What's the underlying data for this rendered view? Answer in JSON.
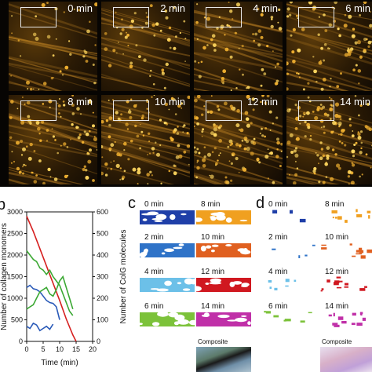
{
  "panel_a": {
    "frames": [
      {
        "label": "0 min"
      },
      {
        "label": "2 min"
      },
      {
        "label": "4 min"
      },
      {
        "label": "6 min"
      },
      {
        "label": "8 min"
      },
      {
        "label": "10 min"
      },
      {
        "label": "12 min"
      },
      {
        "label": "14 min"
      }
    ]
  },
  "panel_b": {
    "letter": "b",
    "chart_data": {
      "type": "line",
      "xlabel": "Time (min)",
      "ylabel_left": "Number of collagen monomers",
      "ylabel_right": "Number of ColG molecules",
      "xlim": [
        0,
        20
      ],
      "ylim_left": [
        0,
        3000
      ],
      "ylim_right": [
        0,
        600
      ],
      "x_ticks": [
        0,
        5,
        10,
        15,
        20
      ],
      "y_ticks_left": [
        0,
        500,
        1000,
        1500,
        2000,
        2500,
        3000
      ],
      "y_ticks_right": [
        0,
        100,
        200,
        300,
        400,
        500,
        600
      ],
      "series": [
        {
          "color": "#d62020",
          "axis": "left",
          "x": [
            0,
            2,
            4,
            6,
            8,
            10,
            12,
            14,
            15
          ],
          "y": [
            2900,
            2550,
            2150,
            1750,
            1350,
            950,
            520,
            150,
            0
          ]
        },
        {
          "color": "#2a5ab8",
          "axis": "left",
          "x": [
            0,
            1,
            2,
            3,
            4,
            5,
            6,
            7,
            8,
            9,
            10
          ],
          "y": [
            1250,
            1300,
            1220,
            1200,
            1150,
            1050,
            950,
            900,
            880,
            800,
            500
          ]
        },
        {
          "color": "#2a5ab8",
          "axis": "left",
          "x": [
            0,
            1,
            2,
            3,
            4,
            5,
            6,
            7,
            8
          ],
          "y": [
            350,
            300,
            420,
            380,
            250,
            300,
            350,
            280,
            400
          ]
        },
        {
          "color": "#3aa832",
          "axis": "right",
          "x": [
            0,
            1,
            2,
            3,
            4,
            5,
            6,
            7,
            8,
            9,
            10,
            11,
            12,
            13,
            14
          ],
          "y": [
            420,
            400,
            380,
            370,
            340,
            330,
            310,
            330,
            300,
            280,
            260,
            220,
            180,
            140,
            120
          ]
        },
        {
          "color": "#3aa832",
          "axis": "right",
          "x": [
            0,
            1,
            2,
            3,
            4,
            5,
            6,
            7,
            8,
            9,
            10,
            11,
            12,
            13,
            14
          ],
          "y": [
            150,
            160,
            170,
            200,
            230,
            240,
            250,
            220,
            210,
            240,
            280,
            300,
            250,
            200,
            150
          ]
        }
      ]
    }
  },
  "panel_c": {
    "letter": "c",
    "labels": [
      "0 min",
      "2 min",
      "4 min",
      "6 min",
      "8 min",
      "10 min",
      "12 min",
      "14 min"
    ],
    "colors": [
      "#1f3fa8",
      "#2f73c8",
      "#6cc0e8",
      "#7cc23a",
      "#f0a020",
      "#e06020",
      "#d01820",
      "#c030a8"
    ],
    "composite_label": "Composite"
  },
  "panel_d": {
    "letter": "d",
    "labels": [
      "0 min",
      "2 min",
      "4 min",
      "6 min",
      "8 min",
      "10 min",
      "12 min",
      "14 min"
    ],
    "colors": [
      "#1f3fa8",
      "#2f73c8",
      "#6cc0e8",
      "#7cc23a",
      "#f0a020",
      "#e06020",
      "#d01820",
      "#c030a8"
    ],
    "composite_label": "Composite"
  }
}
